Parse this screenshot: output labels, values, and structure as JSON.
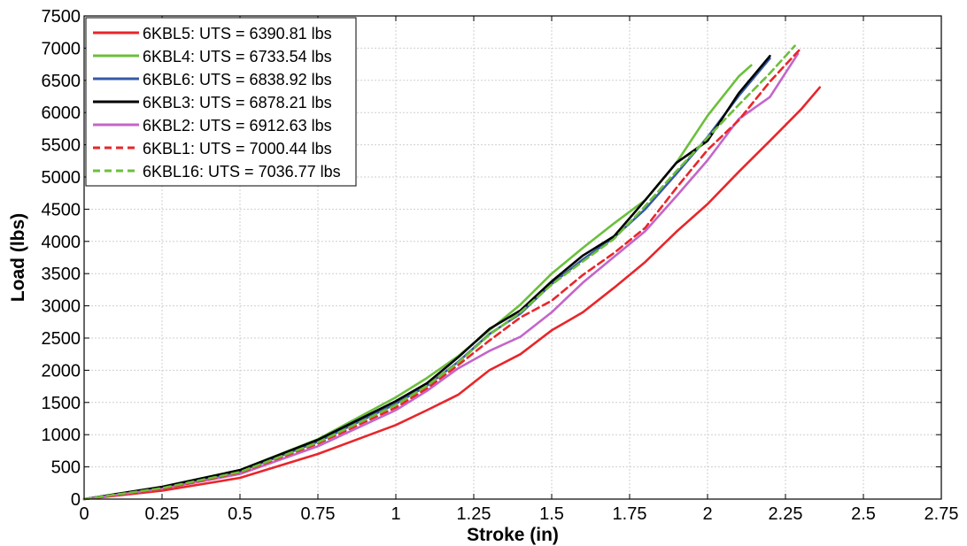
{
  "chart_data": {
    "type": "line",
    "xlabel": "Stroke (in)",
    "ylabel": "Load (lbs)",
    "xlim": [
      0,
      2.75
    ],
    "ylim": [
      0,
      7500
    ],
    "xticks": [
      0,
      0.25,
      0.5,
      0.75,
      1,
      1.25,
      1.5,
      1.75,
      2,
      2.25,
      2.5,
      2.75
    ],
    "xtick_labels": [
      "0",
      "0.25",
      "0.5",
      "0.75",
      "1",
      "1.25",
      "1.5",
      "1.75",
      "2",
      "2.25",
      "2.5",
      "2.75"
    ],
    "yticks": [
      0,
      500,
      1000,
      1500,
      2000,
      2500,
      3000,
      3500,
      4000,
      4500,
      5000,
      5500,
      6000,
      6500,
      7000,
      7500
    ],
    "ytick_labels": [
      "0",
      "500",
      "1000",
      "1500",
      "2000",
      "2500",
      "3000",
      "3500",
      "4000",
      "4500",
      "5000",
      "5500",
      "6000",
      "6500",
      "7000",
      "7500"
    ],
    "grid": true,
    "legend_position": "top-left",
    "series": [
      {
        "name": "6KBL5: UTS = 6390.81 lbs",
        "color": "#e8262a",
        "dash": false,
        "x": [
          0,
          0.25,
          0.5,
          0.75,
          1,
          1.1,
          1.2,
          1.3,
          1.4,
          1.5,
          1.6,
          1.7,
          1.8,
          1.9,
          2,
          2.1,
          2.2,
          2.3,
          2.36
        ],
        "y": [
          0,
          130,
          330,
          700,
          1150,
          1380,
          1620,
          2000,
          2250,
          2620,
          2900,
          3280,
          3680,
          4150,
          4580,
          5080,
          5560,
          6050,
          6390
        ]
      },
      {
        "name": "6KBL4: UTS = 6733.54 lbs",
        "color": "#6cbf3c",
        "dash": false,
        "x": [
          0,
          0.25,
          0.5,
          0.75,
          1,
          1.1,
          1.2,
          1.3,
          1.4,
          1.5,
          1.6,
          1.7,
          1.8,
          1.9,
          2,
          2.1,
          2.14
        ],
        "y": [
          0,
          190,
          450,
          930,
          1580,
          1880,
          2220,
          2620,
          3020,
          3500,
          3900,
          4280,
          4640,
          5220,
          5950,
          6560,
          6734
        ]
      },
      {
        "name": "6KBL6: UTS = 6838.92 lbs",
        "color": "#3558a8",
        "dash": false,
        "x": [
          0,
          0.25,
          0.5,
          0.75,
          1,
          1.1,
          1.2,
          1.3,
          1.4,
          1.5,
          1.6,
          1.7,
          1.8,
          1.9,
          2,
          2.1,
          2.2
        ],
        "y": [
          0,
          180,
          430,
          890,
          1480,
          1760,
          2130,
          2560,
          2880,
          3340,
          3720,
          4060,
          4500,
          5050,
          5620,
          6260,
          6839
        ]
      },
      {
        "name": "6KBL3: UTS = 6878.21 lbs",
        "color": "#000000",
        "dash": false,
        "x": [
          0,
          0.25,
          0.5,
          0.75,
          1,
          1.1,
          1.2,
          1.3,
          1.4,
          1.5,
          1.6,
          1.7,
          1.8,
          1.9,
          2,
          2.1,
          2.2
        ],
        "y": [
          0,
          190,
          450,
          920,
          1520,
          1800,
          2200,
          2640,
          2930,
          3380,
          3780,
          4080,
          4640,
          5220,
          5560,
          6300,
          6878
        ]
      },
      {
        "name": "6KBL2: UTS = 6912.63 lbs",
        "color": "#c465c9",
        "dash": false,
        "x": [
          0,
          0.25,
          0.5,
          0.75,
          1,
          1.1,
          1.2,
          1.3,
          1.4,
          1.5,
          1.6,
          1.7,
          1.8,
          1.9,
          2,
          2.1,
          2.2,
          2.29
        ],
        "y": [
          0,
          160,
          390,
          820,
          1380,
          1680,
          2030,
          2300,
          2520,
          2900,
          3360,
          3760,
          4160,
          4700,
          5260,
          5900,
          6240,
          6913
        ]
      },
      {
        "name": "6KBL1: UTS = 7000.44 lbs",
        "color": "#e8262a",
        "dash": true,
        "x": [
          0,
          0.25,
          0.5,
          0.75,
          1,
          1.1,
          1.2,
          1.3,
          1.4,
          1.5,
          1.6,
          1.7,
          1.8,
          1.9,
          2,
          2.1,
          2.2,
          2.3
        ],
        "y": [
          0,
          160,
          410,
          860,
          1420,
          1720,
          2080,
          2460,
          2820,
          3080,
          3480,
          3820,
          4210,
          4830,
          5420,
          5880,
          6480,
          7000
        ]
      },
      {
        "name": "6KBL16: UTS = 7036.77 lbs",
        "color": "#6cbf3c",
        "dash": true,
        "x": [
          0,
          0.25,
          0.5,
          0.75,
          1,
          1.1,
          1.2,
          1.3,
          1.4,
          1.5,
          1.6,
          1.7,
          1.8,
          1.9,
          2,
          2.1,
          2.2,
          2.28
        ],
        "y": [
          0,
          170,
          420,
          880,
          1460,
          1760,
          2120,
          2550,
          2900,
          3330,
          3690,
          4040,
          4550,
          5090,
          5610,
          6120,
          6610,
          7037
        ]
      }
    ]
  }
}
